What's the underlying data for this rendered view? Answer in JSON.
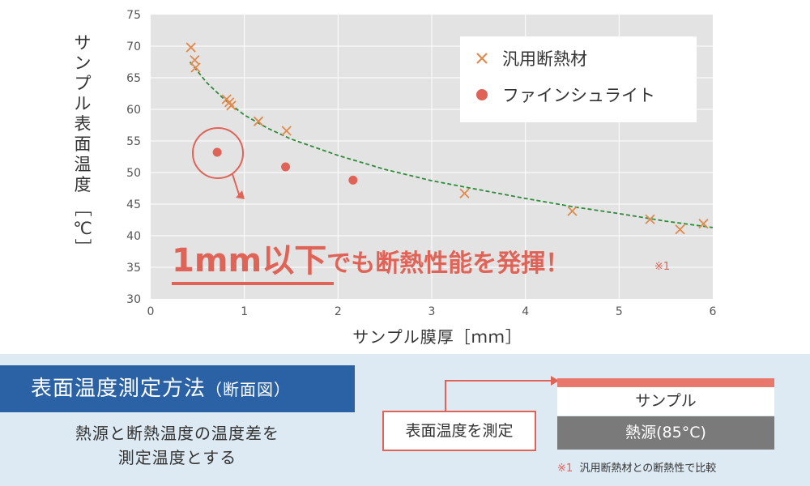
{
  "chart_data": {
    "type": "scatter",
    "xlabel": "サンプル膜厚［ｍｍ］",
    "ylabel": "サンプル表面温度［℃］",
    "xlim": [
      0,
      6
    ],
    "ylim": [
      30,
      75
    ],
    "xticks": [
      0,
      1,
      2,
      3,
      4,
      5,
      6
    ],
    "yticks": [
      30,
      35,
      40,
      45,
      50,
      55,
      60,
      65,
      70,
      75
    ],
    "grid": true,
    "legend_position": "top-right",
    "series": [
      {
        "name": "汎用断熱材",
        "marker": "x",
        "color": "#e08a4e",
        "points": [
          [
            0.43,
            69.8
          ],
          [
            0.47,
            67.8
          ],
          [
            0.48,
            66.6
          ],
          [
            0.81,
            61.6
          ],
          [
            0.84,
            61.1
          ],
          [
            0.86,
            60.6
          ],
          [
            1.15,
            58.1
          ],
          [
            1.45,
            56.6
          ],
          [
            3.35,
            46.7
          ],
          [
            4.5,
            43.9
          ],
          [
            5.33,
            42.6
          ],
          [
            5.65,
            41.0
          ],
          [
            5.9,
            41.9
          ]
        ]
      },
      {
        "name": "ファインシュライト",
        "marker": "circle",
        "color": "#e06357",
        "points": [
          [
            0.71,
            53.2
          ],
          [
            1.44,
            50.9
          ],
          [
            2.16,
            48.8
          ]
        ]
      }
    ],
    "trendline": {
      "color": "#2e8b3a",
      "style": "dashed",
      "points": [
        [
          0.42,
          67.5
        ],
        [
          0.6,
          64.2
        ],
        [
          0.8,
          61.4
        ],
        [
          1.0,
          59.1
        ],
        [
          1.25,
          57.0
        ],
        [
          1.5,
          55.3
        ],
        [
          2.0,
          52.7
        ],
        [
          2.5,
          50.5
        ],
        [
          3.0,
          48.7
        ],
        [
          3.5,
          47.3
        ],
        [
          4.0,
          45.9
        ],
        [
          4.5,
          44.6
        ],
        [
          5.0,
          43.5
        ],
        [
          5.5,
          42.3
        ],
        [
          6.0,
          41.3
        ]
      ]
    },
    "annotation": {
      "text_main": "1mm以下でも断熱性能を発揮！",
      "text_main_part1": "1mm以下",
      "text_main_part2": "でも断熱性能を発揮！",
      "footnote_mark": "※1"
    }
  },
  "bottom": {
    "method_title": "表面温度測定方法",
    "method_title_sub": "（断面図）",
    "description_line1": "熱源と断熱温度の温度差を",
    "description_line2": "測定温度とする",
    "measure_label": "表面温度を測定",
    "sample_label": "サンプル",
    "heat_source_label": "熱源(85°C)",
    "footnote_mark": "※1",
    "footnote_text": "汎用断熱材との断熱性で比較"
  },
  "colors": {
    "plot_bg": "#e3e3e3",
    "accent_red": "#e06357",
    "orange": "#e08a4e",
    "trend_green": "#2e8b3a",
    "panel_blue": "#2b62a5",
    "bottom_bg": "#ddeaf3",
    "heat_source_gray": "#7a7a7a"
  }
}
